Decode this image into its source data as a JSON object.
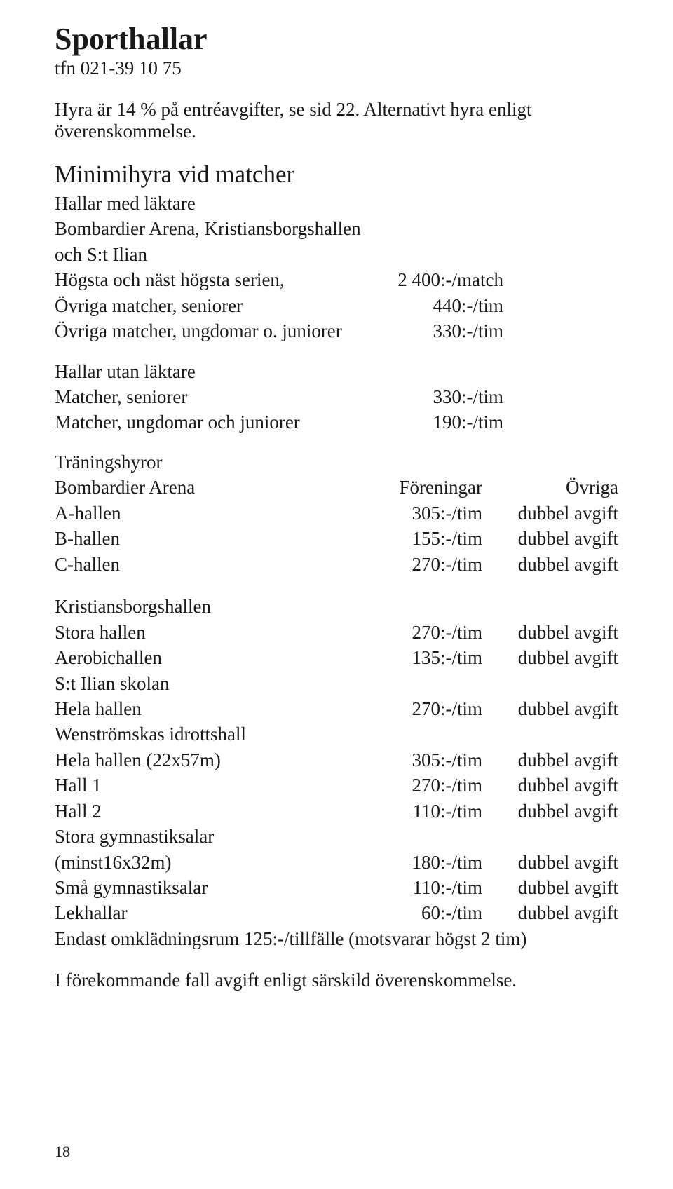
{
  "title": "Sporthallar",
  "phone": "tfn 021-39 10 75",
  "intro": "Hyra är 14 % på entréavgifter, se sid 22. Alternativt hyra enligt överenskommelse.",
  "minimihyra": {
    "heading": "Minimihyra vid matcher",
    "section1": {
      "title": "Hallar med läktare",
      "subtitle": "Bombardier Arena, Kristiansborgshallen och S:t Ilian",
      "rows": [
        {
          "label": "Högsta och näst högsta serien,",
          "value": "2 400:-/match"
        },
        {
          "label": "Övriga matcher, seniorer",
          "value": "440:-/tim"
        },
        {
          "label": "Övriga matcher, ungdomar o. juniorer",
          "value": "330:-/tim"
        }
      ]
    },
    "section2": {
      "title": "Hallar utan läktare",
      "rows": [
        {
          "label": "Matcher, seniorer",
          "value": "330:-/tim"
        },
        {
          "label": "Matcher, ungdomar och juniorer",
          "value": "190:-/tim"
        }
      ]
    }
  },
  "training": {
    "heading": "Träningshyror",
    "header": {
      "c1": "Bombardier Arena",
      "c2": "Föreningar",
      "c3": "Övriga"
    },
    "groups": [
      {
        "title": null,
        "rows": [
          {
            "label": "A-hallen",
            "price": "305:-/tim",
            "note": "dubbel avgift"
          },
          {
            "label": "B-hallen",
            "price": "155:-/tim",
            "note": "dubbel avgift"
          },
          {
            "label": "C-hallen",
            "price": "270:-/tim",
            "note": "dubbel avgift"
          }
        ]
      },
      {
        "title": "Kristiansborgshallen",
        "rows": [
          {
            "label": "Stora hallen",
            "price": "270:-/tim",
            "note": "dubbel avgift"
          },
          {
            "label": "Aerobichallen",
            "price": "135:-/tim",
            "note": "dubbel avgift"
          }
        ]
      },
      {
        "title": "S:t Ilian skolan",
        "rows": [
          {
            "label": "Hela hallen",
            "price": "270:-/tim",
            "note": "dubbel avgift"
          }
        ]
      },
      {
        "title": "Wenströmskas idrottshall",
        "rows": [
          {
            "label": "Hela hallen (22x57m)",
            "price": "305:-/tim",
            "note": "dubbel avgift"
          },
          {
            "label": "Hall 1",
            "price": "270:-/tim",
            "note": "dubbel avgift"
          },
          {
            "label": "Hall 2",
            "price": "110:-/tim",
            "note": "dubbel avgift"
          }
        ]
      },
      {
        "title": "Stora gymnastiksalar",
        "rows": [
          {
            "label": "(minst16x32m)",
            "price": "180:-/tim",
            "note": "dubbel avgift"
          },
          {
            "label": "Små gymnastiksalar",
            "price": "110:-/tim",
            "note": "dubbel avgift"
          },
          {
            "label": "Lekhallar",
            "price": "60:-/tim",
            "note": "dubbel avgift"
          }
        ]
      }
    ],
    "extra": "Endast omklädningsrum 125:-/tillfälle (motsvarar högst 2 tim)"
  },
  "footer": "I förekommande fall avgift enligt särskild överenskommelse.",
  "pagenum": "18"
}
